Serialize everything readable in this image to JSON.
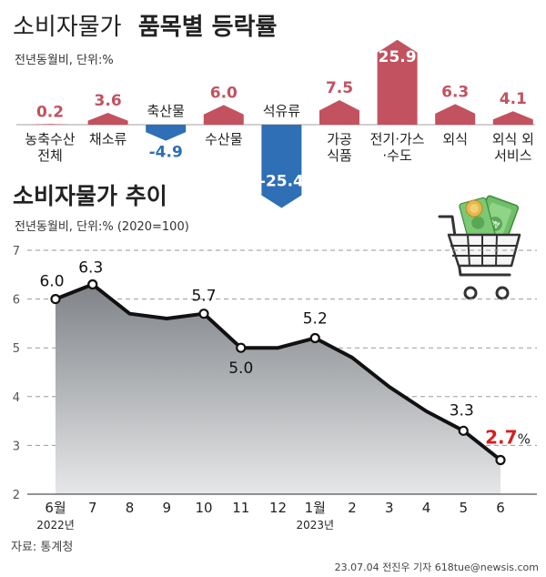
{
  "chart_data": [
    {
      "type": "bar",
      "title": "소비자물가",
      "title_bold": "품목별 등락률",
      "subtitle": "전년동월비, 단위:%",
      "categories": [
        "농축수산\n전체",
        "채소류",
        "축산물",
        "수산물",
        "석유류",
        "가공\n식품",
        "전기·가스\n·수도",
        "외식",
        "외식 외\n서비스"
      ],
      "values": [
        0.2,
        3.6,
        -4.9,
        6.0,
        -25.4,
        7.5,
        25.9,
        6.3,
        4.1
      ],
      "value_labels": [
        "0.2",
        "3.6",
        "-4.9",
        "6.0",
        "-25.4",
        "7.5",
        "25.9",
        "6.3",
        "4.1"
      ],
      "colors": {
        "positive": "#c2525f",
        "negative": "#2e6fb6"
      }
    },
    {
      "type": "line",
      "title": "소비자물가 추이",
      "subtitle": "전년동월비, 단위:% (2020=100)",
      "x": [
        "6월",
        "7",
        "8",
        "9",
        "10",
        "11",
        "12",
        "1월",
        "2",
        "3",
        "4",
        "5",
        "6"
      ],
      "year_labels": [
        {
          "index": 0,
          "text": "2022년"
        },
        {
          "index": 7,
          "text": "2023년"
        }
      ],
      "values": [
        6.0,
        6.3,
        5.7,
        5.6,
        5.7,
        5.0,
        5.0,
        5.2,
        4.8,
        4.2,
        3.7,
        3.3,
        2.7
      ],
      "labeled_points": [
        {
          "index": 0,
          "text": "6.0"
        },
        {
          "index": 1,
          "text": "6.3"
        },
        {
          "index": 4,
          "text": "5.7"
        },
        {
          "index": 5,
          "text": "5.0"
        },
        {
          "index": 7,
          "text": "5.2"
        },
        {
          "index": 11,
          "text": "3.3"
        },
        {
          "index": 12,
          "text": "2.7",
          "suffix": "%",
          "highlight": true
        }
      ],
      "yticks": [
        2,
        3,
        4,
        5,
        6,
        7
      ],
      "ylim": [
        2,
        7
      ],
      "grid": true,
      "highlight_color": "#d42020"
    }
  ],
  "footer": {
    "source": "자료: 통계청",
    "credit": "23.07.04 전진우 기자 618tue@newsis.com"
  }
}
